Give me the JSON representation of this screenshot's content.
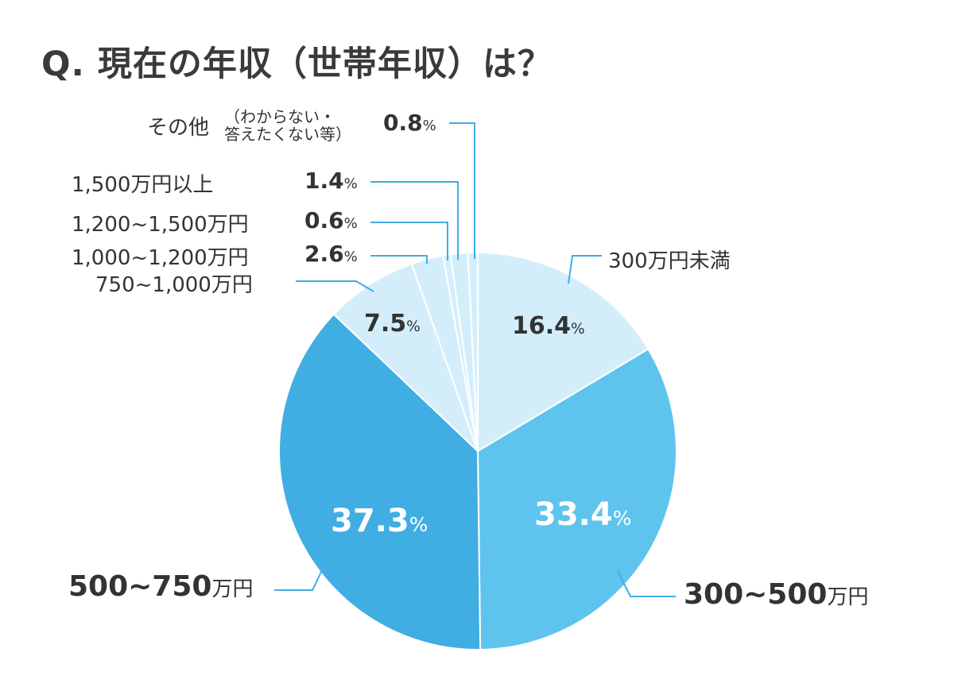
{
  "title": "Q. 現在の年収（世帯年収）は？",
  "colors": {
    "light": "#d3eefa",
    "mid": "#5ec4ee",
    "dark": "#40ade3",
    "leader": "#40ade3",
    "separator": "#ffffff"
  },
  "labels": {
    "other_name": "その他",
    "other_note_line1": "（わからない・",
    "other_note_line2": "答えたくない等）",
    "other_pct": "0.8",
    "over1500_name": "1,500万円以上",
    "over1500_pct": "1.4",
    "r1200_1500_name": "1,200~1,500万円",
    "r1200_1500_pct": "0.6",
    "r1000_1200_name": "1,000~1,200万円",
    "r1000_1200_pct": "2.6",
    "r750_1000_name": "750~1,000万円",
    "under300_name": "300万円未満",
    "r500_750_num": "500~750",
    "r300_500_num": "300~500",
    "unit_man_yen": "万円",
    "pct_sign": "%",
    "in_under300": "16.4",
    "in_300_500": "33.4",
    "in_500_750": "37.3",
    "in_750_1000": "7.5"
  },
  "chart_data": {
    "type": "pie",
    "title": "Q. 現在の年収（世帯年収）は？",
    "start_angle": "12 o'clock, clockwise",
    "categories": [
      "300万円未満",
      "300~500万円",
      "500~750万円",
      "750~1,000万円",
      "1,000~1,200万円",
      "1,200~1,500万円",
      "1,500万円以上",
      "その他（わからない・答えたくない等）"
    ],
    "values": [
      16.4,
      33.4,
      37.3,
      7.5,
      2.6,
      0.6,
      1.4,
      0.8
    ],
    "slice_colors": [
      "#d3eefa",
      "#5ec4ee",
      "#40ade3",
      "#d3eefa",
      "#d3eefa",
      "#d3eefa",
      "#d3eefa",
      "#d3eefa"
    ],
    "unit": "%",
    "legend": "none (leader-line labels)"
  }
}
